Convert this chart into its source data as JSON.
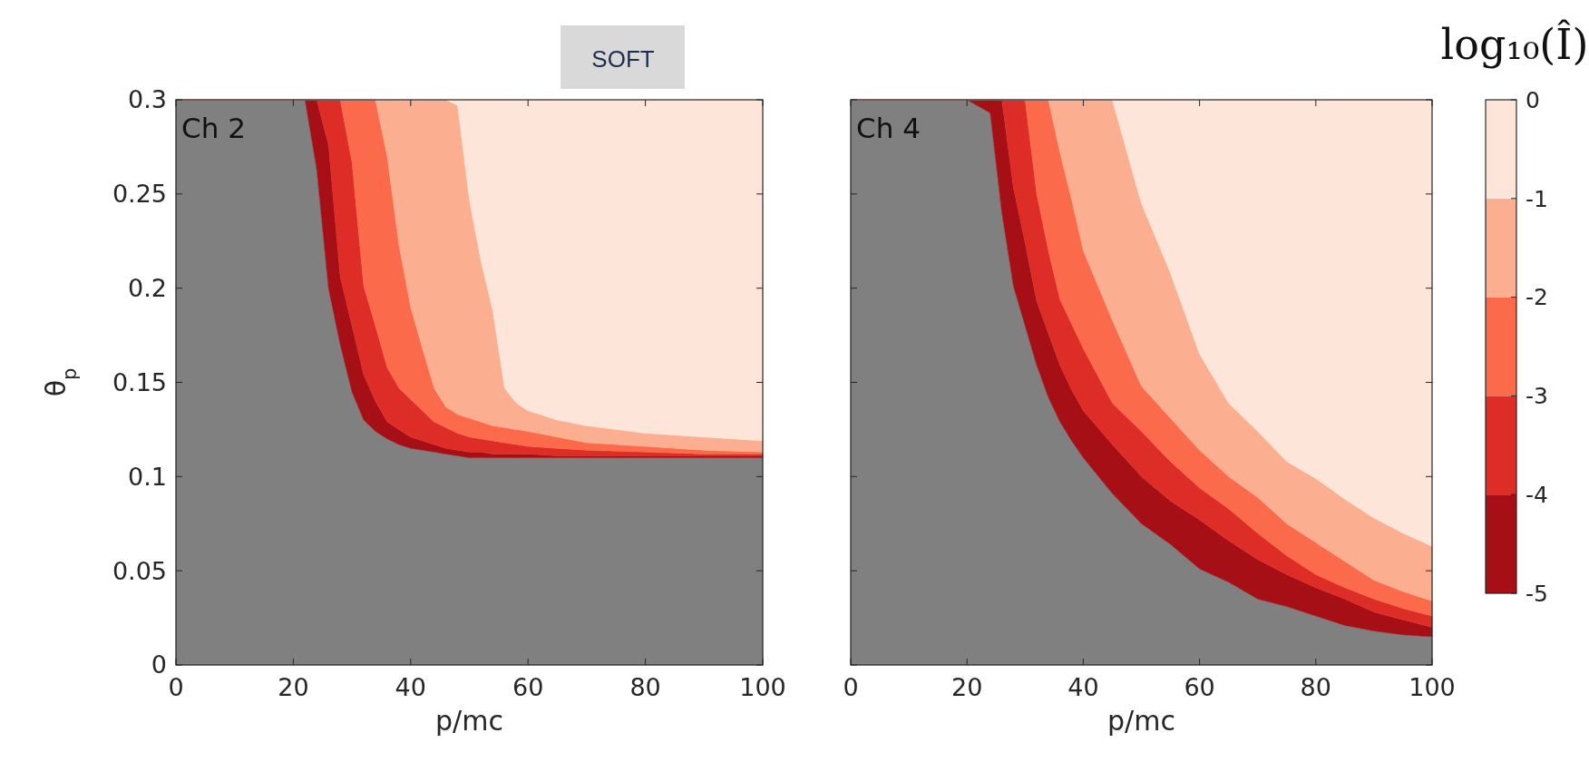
{
  "chart_data": [
    {
      "type": "area",
      "stacked": true,
      "title": "SOFT",
      "xlabel": "p/mc",
      "ylabel": "θ$_{p}$",
      "annotations": [
        "Ch 2"
      ],
      "x": [
        0,
        20,
        22,
        24,
        26,
        28,
        30,
        32,
        34,
        36,
        38,
        40,
        42,
        44,
        46,
        48,
        50,
        52,
        54,
        56,
        58,
        60,
        65,
        70,
        80,
        90,
        100
      ],
      "xlim": [
        0,
        100
      ],
      "xticks": [
        0,
        20,
        40,
        60,
        80,
        100
      ],
      "ylim": [
        0,
        0.3
      ],
      "yticks": [
        0,
        0.05,
        0.1,
        0.15,
        0.2,
        0.25,
        0.3
      ],
      "series": [
        {
          "color": "#808080",
          "values": [
            0.3,
            0.3,
            0.3,
            0.263,
            0.2,
            0.17,
            0.145,
            0.13,
            0.124,
            0.12,
            0.117,
            0.115,
            0.114,
            0.113,
            0.112,
            0.111,
            0.11,
            0.11,
            0.11,
            0.11,
            0.11,
            0.11,
            0.11,
            0.11,
            0.11,
            0.11,
            0.11
          ]
        },
        {
          "color": "#a50f15",
          "values": [
            0,
            0,
            0,
            0.037,
            0.076,
            0.036,
            0.035,
            0.024,
            0.016,
            0.009,
            0.008,
            0.006,
            0.005,
            0.004,
            0.003,
            0.003,
            0.003,
            0.003,
            0.002,
            0.002,
            0.002,
            0.002,
            0.001,
            0.001,
            0.001,
            0.001,
            0.001
          ]
        },
        {
          "color": "#de2d26",
          "values": [
            0,
            0,
            0,
            0,
            0.024,
            0.094,
            0.087,
            0.047,
            0.04,
            0.029,
            0.022,
            0.02,
            0.016,
            0.012,
            0.011,
            0.009,
            0.008,
            0.007,
            0.007,
            0.006,
            0.005,
            0.004,
            0.004,
            0.003,
            0.002,
            0.001,
            0.001
          ]
        },
        {
          "color": "#fb6a4a",
          "values": [
            0,
            0,
            0,
            0,
            0,
            0,
            0.033,
            0.099,
            0.12,
            0.112,
            0.076,
            0.049,
            0.033,
            0.018,
            0.011,
            0.01,
            0.01,
            0.009,
            0.008,
            0.008,
            0.008,
            0.008,
            0.006,
            0.004,
            0.003,
            0.002,
            0.001
          ]
        },
        {
          "color": "#fcae91",
          "values": [
            0,
            0,
            0,
            0,
            0,
            0,
            0,
            0,
            0,
            0.03,
            0.077,
            0.11,
            0.132,
            0.153,
            0.163,
            0.164,
            0.116,
            0.085,
            0.061,
            0.021,
            0.014,
            0.011,
            0.009,
            0.009,
            0.007,
            0.007,
            0.006
          ]
        },
        {
          "color": "#fee5d9",
          "values": [
            0,
            0,
            0,
            0,
            0,
            0,
            0,
            0,
            0,
            0,
            0,
            0,
            0,
            0,
            0,
            0.003,
            0.053,
            0.086,
            0.112,
            0.153,
            0.161,
            0.165,
            0.17,
            0.173,
            0.177,
            0.179,
            0.181
          ]
        }
      ]
    },
    {
      "type": "area",
      "stacked": true,
      "xlabel": "p/mc",
      "annotations": [
        "Ch 4"
      ],
      "tick_labels": "x",
      "clabel": "log₁₀(Î)",
      "clim": [
        -5,
        0
      ],
      "cticks": [
        -5,
        -4,
        -3,
        -2,
        -1,
        0
      ],
      "x": [
        0,
        20,
        24,
        26,
        28,
        30,
        32,
        34,
        36,
        38,
        40,
        45,
        50,
        55,
        60,
        65,
        70,
        75,
        80,
        85,
        90,
        95,
        100
      ],
      "xlim": [
        0,
        100
      ],
      "xticks": [
        0,
        20,
        40,
        60,
        80,
        100
      ],
      "ylim": [
        0,
        0.3
      ],
      "yticks": [
        0,
        0.05,
        0.1,
        0.15,
        0.2,
        0.25,
        0.3
      ],
      "series": [
        {
          "color": "#808080",
          "values": [
            0.3,
            0.3,
            0.293,
            0.24,
            0.201,
            0.18,
            0.159,
            0.142,
            0.129,
            0.119,
            0.11,
            0.091,
            0.075,
            0.064,
            0.051,
            0.044,
            0.035,
            0.031,
            0.026,
            0.021,
            0.018,
            0.016,
            0.015
          ]
        },
        {
          "color": "#a50f15",
          "values": [
            0,
            0,
            0.007,
            0.06,
            0.052,
            0.044,
            0.034,
            0.034,
            0.03,
            0.027,
            0.025,
            0.026,
            0.025,
            0.023,
            0.026,
            0.022,
            0.021,
            0.017,
            0.015,
            0.014,
            0.01,
            0.008,
            0.005
          ]
        },
        {
          "color": "#de2d26",
          "values": [
            0,
            0,
            0,
            0,
            0.047,
            0.076,
            0.057,
            0.044,
            0.035,
            0.035,
            0.033,
            0.022,
            0.024,
            0.021,
            0.017,
            0.017,
            0.014,
            0.01,
            0.007,
            0.006,
            0.007,
            0.006,
            0.006
          ]
        },
        {
          "color": "#fb6a4a",
          "values": [
            0,
            0,
            0,
            0,
            0,
            0,
            0.05,
            0.08,
            0.078,
            0.066,
            0.052,
            0.044,
            0.024,
            0.023,
            0.02,
            0.017,
            0.019,
            0.017,
            0.017,
            0.014,
            0.01,
            0.009,
            0.008
          ]
        },
        {
          "color": "#fcae91",
          "values": [
            0,
            0,
            0,
            0,
            0,
            0,
            0,
            0,
            0.028,
            0.053,
            0.08,
            0.117,
            0.097,
            0.077,
            0.051,
            0.039,
            0.035,
            0.033,
            0.034,
            0.033,
            0.033,
            0.031,
            0.029
          ]
        },
        {
          "color": "#fee5d9",
          "values": [
            0,
            0,
            0,
            0,
            0,
            0,
            0,
            0,
            0,
            0,
            0,
            0,
            0.055,
            0.092,
            0.135,
            0.161,
            0.176,
            0.192,
            0.201,
            0.212,
            0.222,
            0.23,
            0.237
          ]
        }
      ]
    }
  ]
}
